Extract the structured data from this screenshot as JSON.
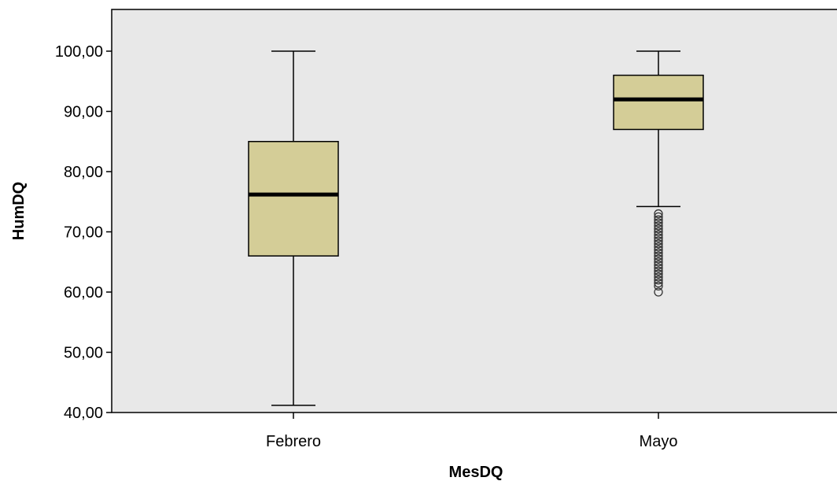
{
  "chart_data": {
    "type": "box",
    "xlabel": "MesDQ",
    "ylabel": "HumDQ",
    "ylim": [
      40,
      107
    ],
    "yticks": [
      40,
      50,
      60,
      70,
      80,
      90,
      100
    ],
    "ytick_labels": [
      "40,00",
      "50,00",
      "60,00",
      "70,00",
      "80,00",
      "90,00",
      "100,00"
    ],
    "categories": [
      "Febrero",
      "Mayo"
    ],
    "boxes": [
      {
        "category": "Febrero",
        "whisker_low": 41.2,
        "q1": 66,
        "median": 76.2,
        "q3": 85,
        "whisker_high": 100,
        "outliers": []
      },
      {
        "category": "Mayo",
        "whisker_low": 74.2,
        "q1": 87,
        "median": 92,
        "q3": 96,
        "whisker_high": 100,
        "outliers": [
          73,
          72.5,
          72,
          71.5,
          71,
          70.5,
          70,
          69.5,
          69,
          68.5,
          68,
          67.5,
          67,
          66.5,
          66,
          65.5,
          65,
          64.5,
          64,
          63.5,
          63,
          62.5,
          62,
          61.5,
          61,
          60
        ]
      }
    ],
    "colors": {
      "box_fill": "#d4cd97",
      "plot_bg": "#e8e8e8",
      "median": "#000000",
      "outline": "#000000"
    },
    "grid": false,
    "legend": "none"
  }
}
